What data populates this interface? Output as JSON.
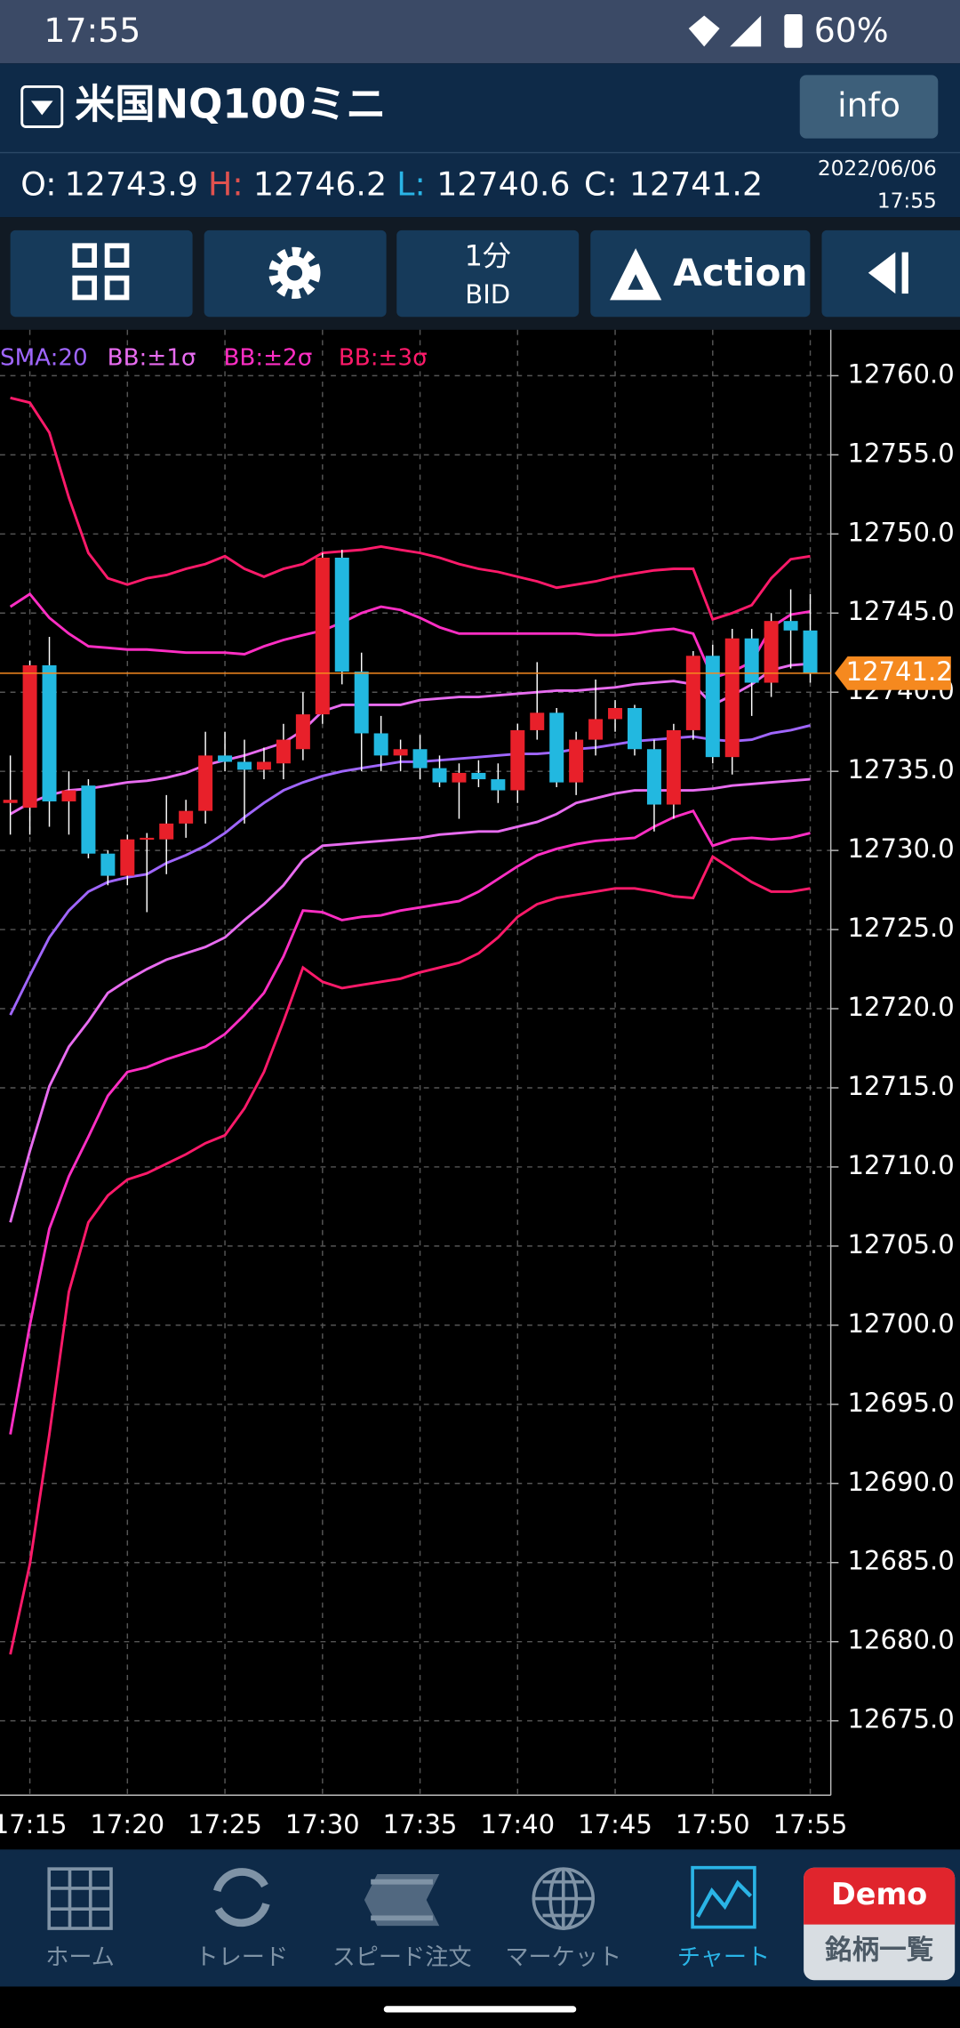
{
  "status_bar": {
    "time": "17:55",
    "battery": "60%"
  },
  "header": {
    "symbol": "米国NQ100ミニ",
    "info_button": "info"
  },
  "quote": {
    "open_label": "O:",
    "open": 12743.9,
    "high_label": "H:",
    "high": 12746.2,
    "low_label": "L:",
    "low": 12740.6,
    "close_label": "C:",
    "close": 12741.2,
    "date": "2022/06/06",
    "time": "17:55"
  },
  "toolbar": {
    "period": "1分",
    "price_side": "BID",
    "action": "Action"
  },
  "chart_data": {
    "type": "candlestick",
    "categories": [
      null,
      "17:15",
      null,
      null,
      null,
      null,
      "17:20",
      null,
      null,
      null,
      null,
      "17:25",
      null,
      null,
      null,
      null,
      "17:30",
      null,
      null,
      null,
      null,
      "17:35",
      null,
      null,
      null,
      null,
      "17:40",
      null,
      null,
      null,
      null,
      "17:45",
      null,
      null,
      null,
      null,
      "17:50",
      null,
      null,
      null,
      null,
      "17:55"
    ],
    "candles": [
      [
        12733.0,
        12736.0,
        12731.0,
        12733.2
      ],
      [
        12732.7,
        12742.0,
        12731.0,
        12741.7
      ],
      [
        12741.7,
        12743.5,
        12731.5,
        12733.1
      ],
      [
        12733.1,
        12735.0,
        12731.0,
        12733.8
      ],
      [
        12734.1,
        12734.5,
        12729.5,
        12729.8
      ],
      [
        12729.8,
        12730.0,
        12727.8,
        12728.4
      ],
      [
        12728.4,
        12731.0,
        12727.8,
        12730.7
      ],
      [
        12730.7,
        12731.1,
        12726.1,
        12730.8
      ],
      [
        12730.7,
        12733.5,
        12728.5,
        12731.7
      ],
      [
        12731.7,
        12733.2,
        12730.8,
        12732.5
      ],
      [
        12732.5,
        12737.5,
        12731.7,
        12736.0
      ],
      [
        12736.0,
        12737.5,
        12735.0,
        12735.6
      ],
      [
        12735.6,
        12737.0,
        12731.7,
        12735.1
      ],
      [
        12735.1,
        12736.5,
        12734.5,
        12735.6
      ],
      [
        12735.5,
        12738.0,
        12734.5,
        12737.0
      ],
      [
        12736.4,
        12740.0,
        12735.7,
        12738.6
      ],
      [
        12738.6,
        12748.8,
        12738.0,
        12748.5
      ],
      [
        12748.5,
        12749.0,
        12740.5,
        12741.3
      ],
      [
        12741.3,
        12742.5,
        12735.0,
        12737.4
      ],
      [
        12737.4,
        12738.5,
        12735.0,
        12736.0
      ],
      [
        12736.0,
        12737.0,
        12735.0,
        12736.4
      ],
      [
        12736.4,
        12737.3,
        12734.5,
        12735.2
      ],
      [
        12735.2,
        12736.0,
        12734.0,
        12734.3
      ],
      [
        12734.3,
        12735.5,
        12732.0,
        12734.9
      ],
      [
        12734.9,
        12735.7,
        12734.0,
        12734.5
      ],
      [
        12734.5,
        12735.5,
        12733.0,
        12733.8
      ],
      [
        12733.8,
        12738.0,
        12733.0,
        12737.6
      ],
      [
        12737.6,
        12741.9,
        12737.0,
        12738.7
      ],
      [
        12738.7,
        12739.0,
        12734.0,
        12734.3
      ],
      [
        12734.3,
        12737.5,
        12733.5,
        12737.0
      ],
      [
        12737.0,
        12740.8,
        12736.0,
        12738.3
      ],
      [
        12738.3,
        12739.5,
        12737.5,
        12739.0
      ],
      [
        12739.0,
        12739.2,
        12736.0,
        12736.4
      ],
      [
        12736.4,
        12737.0,
        12731.2,
        12732.9
      ],
      [
        12732.9,
        12738.0,
        12732.0,
        12737.6
      ],
      [
        12737.6,
        12742.6,
        12737.0,
        12742.3
      ],
      [
        12742.3,
        12743.0,
        12735.5,
        12735.9
      ],
      [
        12735.9,
        12744.0,
        12734.8,
        12743.4
      ],
      [
        12743.4,
        12744.0,
        12738.5,
        12740.6
      ],
      [
        12740.6,
        12745.0,
        12739.7,
        12744.5
      ],
      [
        12744.5,
        12746.5,
        12741.5,
        12743.9
      ],
      [
        12743.9,
        12746.2,
        12740.6,
        12741.2
      ]
    ],
    "up_color": "#e8202a",
    "down_color": "#22b8e0",
    "series": [
      {
        "name": "SMA:20",
        "color": "#a066ff",
        "values": [
          12719.6,
          12722.1,
          12724.5,
          12726.2,
          12727.4,
          12728.0,
          12728.3,
          12728.5,
          12729.2,
          12729.7,
          12730.3,
          12731.1,
          12732.1,
          12733.0,
          12733.8,
          12734.3,
          12734.7,
          12735.0,
          12735.2,
          12735.4,
          12735.6,
          12735.6,
          12735.7,
          12735.8,
          12735.9,
          12736.0,
          12736.1,
          12736.1,
          12736.2,
          12736.4,
          12736.5,
          12736.7,
          12736.9,
          12737.0,
          12737.1,
          12737.2,
          12737.0,
          12736.9,
          12737.0,
          12737.4,
          12737.6,
          12737.9
        ]
      },
      {
        "name": "BB:±1σ",
        "color": "#e86cf0",
        "upper": [
          12732.3,
          12733.0,
          12733.5,
          12733.8,
          12733.9,
          12734.1,
          12734.3,
          12734.4,
          12734.6,
          12734.9,
          12735.4,
          12735.7,
          12736.0,
          12736.4,
          12736.8,
          12737.6,
          12738.8,
          12739.2,
          12739.2,
          12739.2,
          12739.2,
          12739.5,
          12739.6,
          12739.7,
          12739.7,
          12739.8,
          12739.9,
          12740.0,
          12740.1,
          12740.1,
          12740.2,
          12740.3,
          12740.5,
          12740.6,
          12740.7,
          12740.5,
          12739.2,
          12739.8,
          12740.5,
          12741.4,
          12741.7,
          12741.8
        ],
        "lower": [
          12706.5,
          12711.0,
          12715.1,
          12717.6,
          12719.2,
          12721.0,
          12721.8,
          12722.5,
          12723.1,
          12723.5,
          12723.9,
          12724.5,
          12725.6,
          12726.6,
          12727.8,
          12729.4,
          12730.3,
          12730.4,
          12730.5,
          12730.6,
          12730.7,
          12730.8,
          12731.0,
          12731.1,
          12731.2,
          12731.2,
          12731.5,
          12731.8,
          12732.3,
          12733.0,
          12733.3,
          12733.6,
          12733.8,
          12733.8,
          12733.8,
          12733.8,
          12733.9,
          12734.1,
          12734.2,
          12734.3,
          12734.4,
          12734.5
        ]
      },
      {
        "name": "BB:±2σ",
        "color": "#ff2ec4",
        "upper": [
          12745.4,
          12746.2,
          12744.7,
          12743.7,
          12742.9,
          12742.8,
          12742.7,
          12742.7,
          12742.6,
          12742.5,
          12742.5,
          12742.5,
          12742.4,
          12742.9,
          12743.3,
          12743.6,
          12743.9,
          12744.4,
          12745.0,
          12745.4,
          12745.2,
          12744.7,
          12744.1,
          12743.7,
          12743.7,
          12743.7,
          12743.7,
          12743.7,
          12743.7,
          12743.7,
          12743.6,
          12743.6,
          12743.7,
          12743.9,
          12744.0,
          12743.7,
          12740.9,
          12741.3,
          12741.9,
          12744.1,
          12744.9,
          12745.1
        ],
        "lower": [
          12693.1,
          12700.0,
          12706.1,
          12709.4,
          12711.9,
          12714.5,
          12716.0,
          12716.3,
          12716.8,
          12717.2,
          12717.6,
          12718.4,
          12719.6,
          12721.0,
          12723.3,
          12726.2,
          12726.1,
          12725.6,
          12725.8,
          12725.9,
          12726.2,
          12726.4,
          12726.6,
          12726.8,
          12727.4,
          12728.2,
          12729.0,
          12729.7,
          12730.1,
          12730.4,
          12730.6,
          12730.7,
          12730.8,
          12731.5,
          12732.1,
          12732.5,
          12730.3,
          12730.7,
          12730.8,
          12730.7,
          12730.8,
          12731.1
        ]
      },
      {
        "name": "BB:±3σ",
        "color": "#ff1a6a",
        "upper": [
          12758.6,
          12758.3,
          12756.4,
          12752.3,
          12748.8,
          12747.2,
          12746.8,
          12747.2,
          12747.4,
          12747.8,
          12748.1,
          12748.6,
          12747.8,
          12747.3,
          12747.8,
          12748.1,
          12748.8,
          12748.9,
          12749.0,
          12749.2,
          12749.0,
          12748.8,
          12748.5,
          12748.1,
          12747.8,
          12747.6,
          12747.3,
          12747.0,
          12746.6,
          12746.8,
          12747.0,
          12747.3,
          12747.5,
          12747.7,
          12747.8,
          12747.8,
          12744.6,
          12745.0,
          12745.5,
          12747.2,
          12748.4,
          12748.6
        ],
        "lower": [
          12679.2,
          12684.9,
          12693.1,
          12702.1,
          12706.5,
          12708.2,
          12709.2,
          12709.6,
          12710.2,
          12710.8,
          12711.5,
          12712.0,
          12713.7,
          12716.0,
          12719.2,
          12722.6,
          12721.7,
          12721.3,
          12721.5,
          12721.7,
          12721.9,
          12722.3,
          12722.6,
          12722.9,
          12723.5,
          12724.5,
          12725.8,
          12726.6,
          12727.0,
          12727.2,
          12727.4,
          12727.6,
          12727.6,
          12727.4,
          12727.1,
          12727.0,
          12729.6,
          12728.8,
          12728.0,
          12727.4,
          12727.4,
          12727.6
        ]
      }
    ],
    "last_price": 12741.2,
    "last_price_color": "#f5891f",
    "ylim": [
      12670.3,
      12762.9
    ],
    "yticks": [
      {
        "value": 12760,
        "label": "12760.0"
      },
      {
        "value": 12755,
        "label": "12755.0"
      },
      {
        "value": 12750,
        "label": "12750.0"
      },
      {
        "value": 12745,
        "label": "12745.0"
      },
      {
        "value": 12740,
        "label": "12740.0"
      },
      {
        "value": 12735,
        "label": "12735.0"
      },
      {
        "value": 12730,
        "label": "12730.0"
      },
      {
        "value": 12725,
        "label": "12725.0"
      },
      {
        "value": 12720,
        "label": "12720.0"
      },
      {
        "value": 12715,
        "label": "12715.0"
      },
      {
        "value": 12710,
        "label": "12710.0"
      },
      {
        "value": 12705,
        "label": "12705.0"
      },
      {
        "value": 12700,
        "label": "12700.0"
      },
      {
        "value": 12695,
        "label": "12695.0"
      },
      {
        "value": 12690,
        "label": "12690.0"
      },
      {
        "value": 12685,
        "label": "12685.0"
      },
      {
        "value": 12680,
        "label": "12680.0"
      },
      {
        "value": 12675,
        "label": "12675.0"
      }
    ],
    "grid": true
  },
  "nav": {
    "home": "ホーム",
    "trade": "トレード",
    "speed_order": "スピード注文",
    "market": "マーケット",
    "chart": "チャート",
    "demo": "Demo",
    "symbol_list": "銘柄一覧"
  }
}
